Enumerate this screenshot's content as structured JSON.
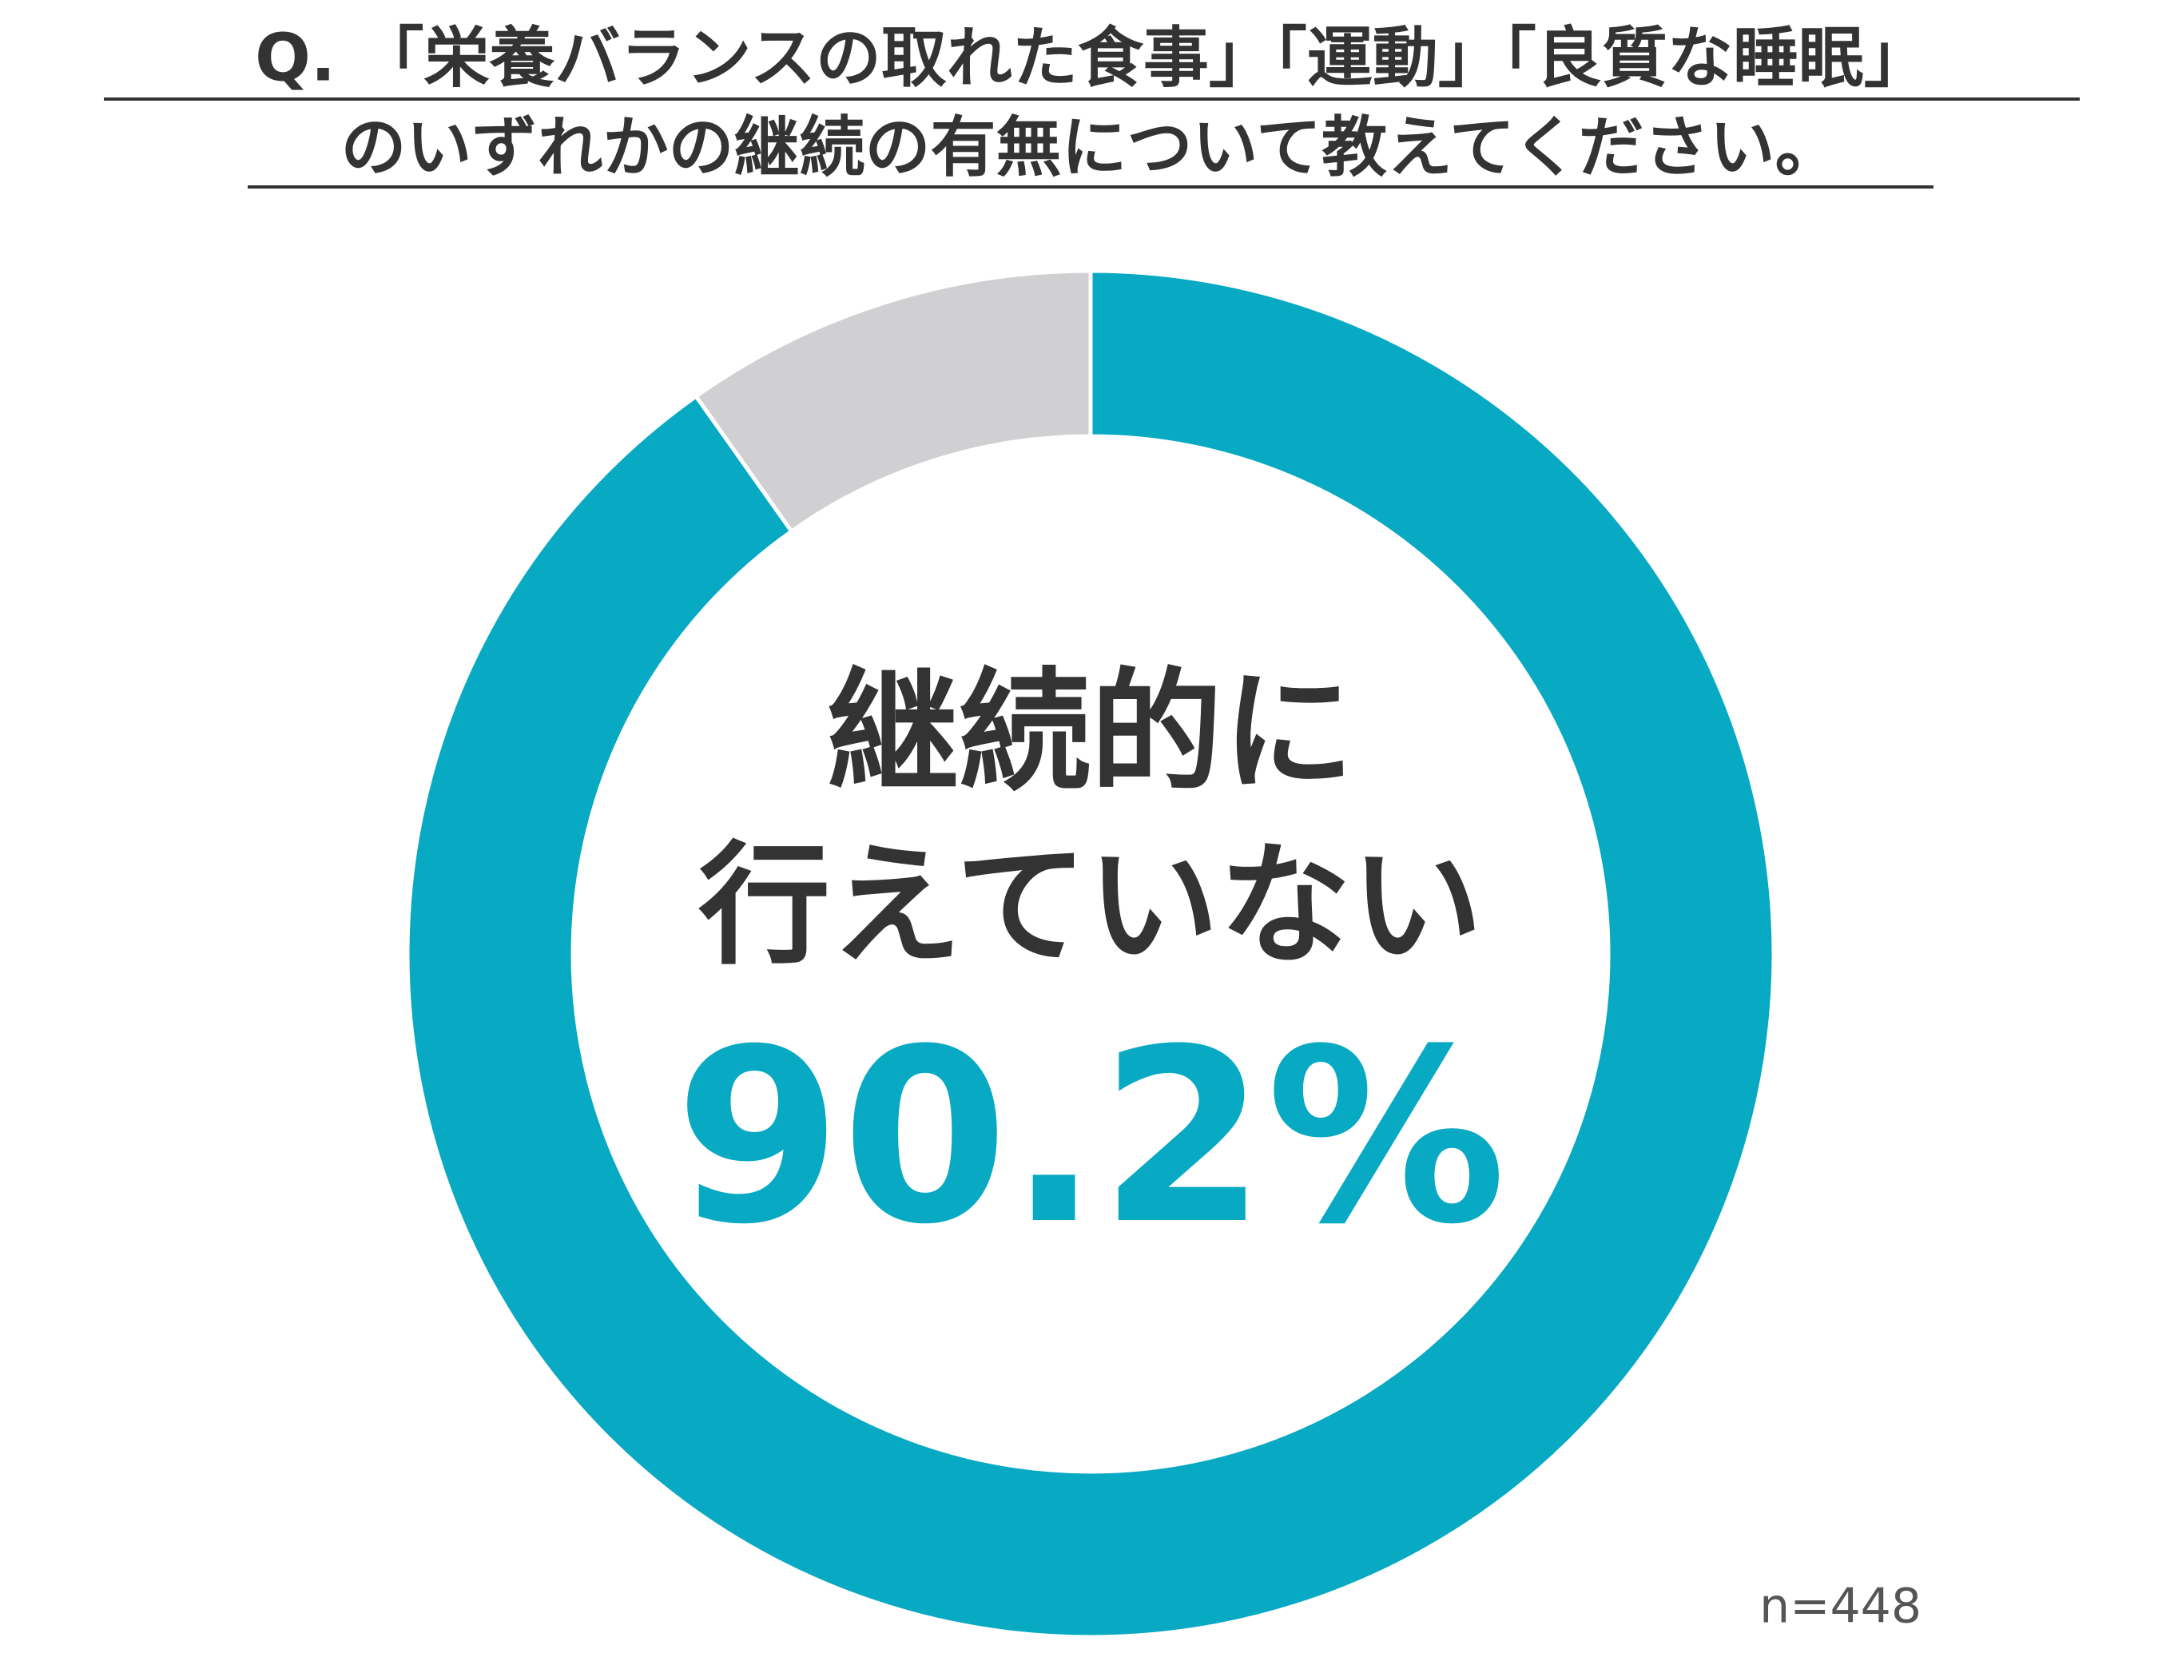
{
  "chart_data": {
    "type": "donut",
    "title": [
      "Q. 「栄養バランスの取れた食事」「運動」「良質な睡眠」",
      "のいずれかの継続の有無について教えてください。"
    ],
    "center_label": [
      "継続的に",
      "行えていない"
    ],
    "values": [
      90.2,
      9.8
    ],
    "value_labels": [
      "90.2%",
      null
    ],
    "colors": [
      "#07a9c3",
      "#d0cfd1"
    ],
    "note": "n=448"
  }
}
